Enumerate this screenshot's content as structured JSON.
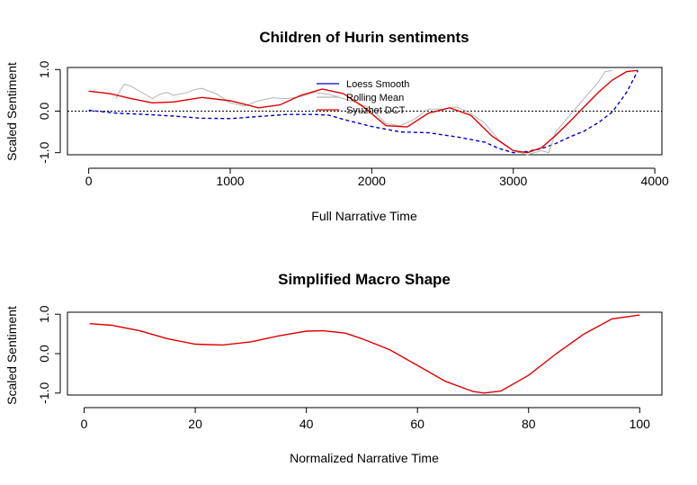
{
  "chart_data": [
    {
      "type": "line",
      "title": "Children of Hurin sentiments",
      "xlabel": "Full Narrative Time",
      "ylabel": "Scaled Sentiment",
      "xlim": [
        -150,
        4050
      ],
      "ylim": [
        -1.05,
        1.05
      ],
      "xticks": [
        0,
        1000,
        2000,
        3000,
        4000
      ],
      "yticks": [
        -1.0,
        0.0,
        1.0
      ],
      "ytick_labels": [
        "-1.0",
        "0.0",
        "1.0"
      ],
      "reference_line": 0.0,
      "legend": {
        "position": "top-center",
        "border": false
      },
      "series": [
        {
          "name": "Loess Smooth",
          "color": "#0000cc",
          "dash": true,
          "x": [
            0,
            200,
            400,
            600,
            800,
            1000,
            1200,
            1400,
            1600,
            1700,
            1800,
            2000,
            2200,
            2400,
            2600,
            2800,
            2900,
            3000,
            3100,
            3200,
            3300,
            3400,
            3500,
            3600,
            3700,
            3800,
            3880
          ],
          "y": [
            0.02,
            -0.05,
            -0.08,
            -0.12,
            -0.17,
            -0.18,
            -0.13,
            -0.08,
            -0.08,
            -0.1,
            -0.2,
            -0.37,
            -0.5,
            -0.52,
            -0.62,
            -0.75,
            -0.9,
            -1.0,
            -0.97,
            -0.9,
            -0.78,
            -0.62,
            -0.48,
            -0.28,
            -0.02,
            0.45,
            0.97
          ]
        },
        {
          "name": "Rolling Mean",
          "color": "#b4b4b4",
          "x": [
            190,
            250,
            300,
            350,
            400,
            450,
            500,
            550,
            600,
            700,
            750,
            800,
            850,
            900,
            1000,
            1100,
            1200,
            1300,
            1400,
            1500,
            1600,
            1700,
            1800,
            1900,
            2000,
            2100,
            2200,
            2300,
            2400,
            2500,
            2600,
            2700,
            2800,
            2900,
            3000,
            3100,
            3200,
            3250,
            3300,
            3400,
            3500,
            3600,
            3650,
            3700
          ],
          "y": [
            0.3,
            0.65,
            0.6,
            0.5,
            0.4,
            0.3,
            0.4,
            0.45,
            0.38,
            0.45,
            0.52,
            0.55,
            0.48,
            0.42,
            0.2,
            0.12,
            0.25,
            0.32,
            0.3,
            0.35,
            0.45,
            0.4,
            0.3,
            0.2,
            0.05,
            -0.3,
            -0.35,
            -0.2,
            0.05,
            0.05,
            0.1,
            -0.05,
            -0.3,
            -0.7,
            -0.95,
            -1.05,
            -0.95,
            -1.0,
            -0.5,
            -0.1,
            0.3,
            0.7,
            0.95,
            0.98
          ]
        },
        {
          "name": "Syuzhet DCT",
          "color": "#dd0000",
          "x": [
            0,
            150,
            300,
            450,
            600,
            800,
            1000,
            1200,
            1350,
            1500,
            1650,
            1800,
            1950,
            2100,
            2250,
            2400,
            2550,
            2700,
            2850,
            3000,
            3100,
            3200,
            3300,
            3400,
            3500,
            3600,
            3700,
            3800,
            3880
          ],
          "y": [
            0.48,
            0.42,
            0.3,
            0.2,
            0.22,
            0.33,
            0.25,
            0.08,
            0.15,
            0.38,
            0.53,
            0.42,
            0.08,
            -0.35,
            -0.38,
            -0.05,
            0.08,
            -0.1,
            -0.6,
            -0.95,
            -1.0,
            -0.88,
            -0.58,
            -0.25,
            0.1,
            0.45,
            0.75,
            0.95,
            0.98
          ]
        }
      ]
    },
    {
      "type": "line",
      "title": "Simplified Macro Shape",
      "xlabel": "Normalized Narrative Time",
      "ylabel": "Scaled Sentiment",
      "xlim": [
        -3,
        104
      ],
      "ylim": [
        -1.05,
        1.05
      ],
      "xticks": [
        0,
        20,
        40,
        60,
        80,
        100
      ],
      "yticks": [
        -1.0,
        0.0,
        1.0
      ],
      "ytick_labels": [
        "-1.0",
        "0.0",
        "1.0"
      ],
      "series": [
        {
          "color": "#dd0000",
          "x": [
            1,
            5,
            10,
            15,
            20,
            25,
            30,
            35,
            40,
            43,
            47,
            50,
            55,
            60,
            65,
            70,
            72,
            75,
            80,
            85,
            90,
            95,
            100
          ],
          "y": [
            0.76,
            0.72,
            0.58,
            0.38,
            0.24,
            0.22,
            0.3,
            0.45,
            0.57,
            0.58,
            0.52,
            0.38,
            0.1,
            -0.3,
            -0.7,
            -0.96,
            -1.0,
            -0.95,
            -0.55,
            0.0,
            0.5,
            0.88,
            0.98
          ]
        }
      ]
    }
  ]
}
